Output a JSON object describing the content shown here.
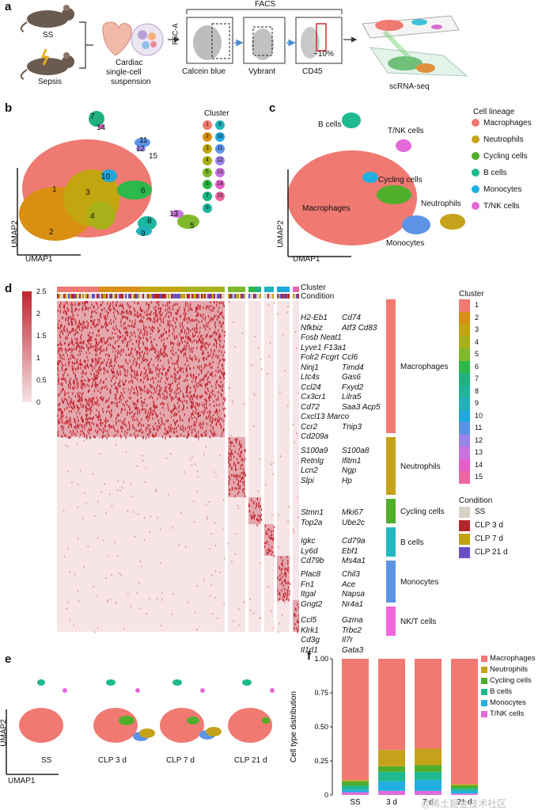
{
  "panels": {
    "a": "a",
    "b": "b",
    "c": "c",
    "d": "d",
    "e": "e",
    "f": "f"
  },
  "panel_a": {
    "ss": "SS",
    "sepsis": "Sepsis",
    "suspension": [
      "Cardiac",
      "single-cell",
      "suspension"
    ],
    "facs": "FACS",
    "fsc": "FSC-A",
    "gates": [
      "Calcein blue",
      "Vybrant",
      "CD45"
    ],
    "pct": "~10%",
    "scrna": "scRNA-seq"
  },
  "panel_b": {
    "legend_title": "Cluster",
    "cluster_ids": [
      "1",
      "2",
      "3",
      "4",
      "5",
      "6",
      "7",
      "8",
      "9",
      "10",
      "11",
      "12",
      "13",
      "14",
      "15"
    ],
    "cluster_colors": [
      "#ee7a72",
      "#d88f12",
      "#c2a50f",
      "#a8b11a",
      "#7db92b",
      "#2db84a",
      "#1fb17e",
      "#1eb59d",
      "#21b2bb",
      "#1fa8db",
      "#5c93e6",
      "#9b84e8",
      "#c872df",
      "#e45fc8",
      "#ef67a0"
    ],
    "xlabel": "UMAP1",
    "ylabel": "UMAP2"
  },
  "panel_c": {
    "legend_title": "Cell lineage",
    "lineages": [
      {
        "name": "Macrophages",
        "color": "#f07a72"
      },
      {
        "name": "Neutrophils",
        "color": "#c4a21a"
      },
      {
        "name": "Cycling cells",
        "color": "#4fae2a"
      },
      {
        "name": "B cells",
        "color": "#1fb98f"
      },
      {
        "name": "Monocytes",
        "color": "#22aee0"
      },
      {
        "name": "T/NK cells",
        "color": "#e36ad8"
      }
    ],
    "map_labels": {
      "bcells": "B cells",
      "tnk": "T/NK cells",
      "cycling": "Cycling cells",
      "macro": "Macrophages",
      "neutro": "Neutrophils",
      "mono": "Monocytes"
    },
    "xlabel": "UMAP1",
    "ylabel": "UMAP2"
  },
  "panel_d": {
    "scale_ticks": [
      "2.5",
      "2",
      "1.5",
      "1",
      "0.5",
      "0"
    ],
    "track_labels": [
      "Cluster",
      "Condition"
    ],
    "gene_groups": [
      {
        "lineage": "Macrophages",
        "left": [
          "H2-Eb1",
          "Nfkbiz",
          "Fosb Neat1",
          "Lyve1 F13a1",
          "Folr2 Fcgrt",
          "Ninj1",
          "Ltc4s",
          "Ccl24",
          "Cx3cr1",
          "Cd72",
          "Cxcl13 Marco",
          "Ccr2",
          "Cd209a"
        ],
        "right": [
          "Cd74",
          "Atf3 Cd83",
          "",
          "",
          "Ccl6",
          "Timd4",
          "Gas6",
          "Fxyd2",
          "Lilra5",
          "Saa3 Acp5",
          "",
          "Tnip3",
          ""
        ]
      },
      {
        "lineage": "Neutrophils",
        "left": [
          "S100a9",
          "Retnlg",
          "Lcn2",
          "Slpi"
        ],
        "right": [
          "S100a8",
          "Ifitm1",
          "Ngp",
          "Hp"
        ]
      },
      {
        "lineage": "Cycling cells",
        "left": [
          "Stmn1",
          "Top2a"
        ],
        "right": [
          "Mki67",
          "Ube2c"
        ]
      },
      {
        "lineage": "B cells",
        "left": [
          "Igkc",
          "Ly6d",
          "Cd79b"
        ],
        "right": [
          "Cd79a",
          "Ebf1",
          "Ms4a1"
        ]
      },
      {
        "lineage": "Monocytes",
        "left": [
          "Plac8",
          "Fn1",
          "Itgal",
          "Gngt2"
        ],
        "right": [
          "Chil3",
          "Ace",
          "Napsa",
          "Nr4a1"
        ]
      },
      {
        "lineage": "NK/T cells",
        "left": [
          "Ccl5",
          "Klrk1",
          "Cd3g",
          "Il1rl1"
        ],
        "right": [
          "Gzma",
          "Trbc2",
          "Il7r",
          "Gata3"
        ]
      }
    ],
    "cluster_legend_title": "Cluster",
    "condition_legend_title": "Condition",
    "conditions": [
      {
        "name": "SS",
        "color": "#d6d3c6"
      },
      {
        "name": "CLP 3 d",
        "color": "#b5262b"
      },
      {
        "name": "CLP 7 d",
        "color": "#c4a10f"
      },
      {
        "name": "CLP 21 d",
        "color": "#6a4fc6"
      }
    ]
  },
  "panel_e": {
    "labels": [
      "SS",
      "CLP 3 d",
      "CLP 7 d",
      "CLP 21 d"
    ],
    "xlabel": "UMAP1",
    "ylabel": "UMAP2"
  },
  "chart_data": {
    "type": "bar",
    "stacked": true,
    "categories": [
      "SS",
      "3 d",
      "7 d",
      "21 d"
    ],
    "ylabel": "Cell type distribution",
    "ylim": [
      0,
      1
    ],
    "yticks": [
      "0",
      "0.25",
      "0.50",
      "0.75",
      "1.00"
    ],
    "series": [
      {
        "name": "T/NK cells",
        "color": "#e36ad8",
        "values": [
          0.02,
          0.03,
          0.03,
          0.01
        ]
      },
      {
        "name": "Monocytes",
        "color": "#22aee0",
        "values": [
          0.02,
          0.07,
          0.08,
          0.02
        ]
      },
      {
        "name": "B cells",
        "color": "#1fb98f",
        "values": [
          0.03,
          0.07,
          0.06,
          0.02
        ]
      },
      {
        "name": "Cycling cells",
        "color": "#4fae2a",
        "values": [
          0.03,
          0.04,
          0.05,
          0.02
        ]
      },
      {
        "name": "Neutrophils",
        "color": "#c4a21a",
        "values": [
          0.01,
          0.12,
          0.12,
          0.01
        ]
      },
      {
        "name": "Macrophages",
        "color": "#f07a72",
        "values": [
          0.89,
          0.67,
          0.66,
          0.92
        ]
      }
    ],
    "legend_order": [
      "Macrophages",
      "Neutrophils",
      "Cycling cells",
      "B cells",
      "Monocytes",
      "T/NK cells"
    ],
    "legend_position": "right"
  },
  "watermark": "@稀土掘金技术社区"
}
